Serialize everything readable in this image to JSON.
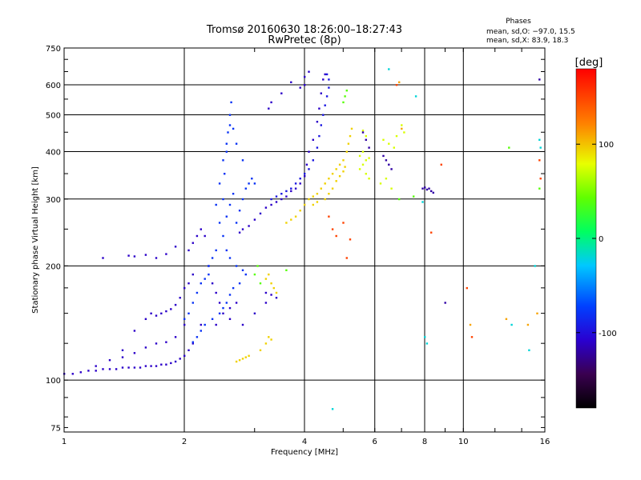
{
  "chart_data": {
    "type": "scatter",
    "title": "Tromsø 20160630 18:26:00–18:27:43",
    "subtitle": "RwPretec (8p)",
    "stats": {
      "heading": "Phases",
      "line_o": "mean, sd,O: −97.0, 15.5",
      "line_x": "mean, sd,X:  83.9, 18.3"
    },
    "xlabel": "Frequency [MHz]",
    "ylabel": "Stationary phase Virtual Height [km]",
    "xscale": "log",
    "yscale": "log",
    "xlim": [
      1,
      16
    ],
    "ylim": [
      73,
      750
    ],
    "xticks": [
      {
        "v": 1,
        "label": "1"
      },
      {
        "v": 2,
        "label": "2"
      },
      {
        "v": 4,
        "label": "4"
      },
      {
        "v": 6,
        "label": "6"
      },
      {
        "v": 8,
        "label": "8"
      },
      {
        "v": 10,
        "label": "10"
      },
      {
        "v": 16,
        "label": "16"
      }
    ],
    "yticks": [
      {
        "v": 75,
        "label": "75"
      },
      {
        "v": 100,
        "label": "100"
      },
      {
        "v": 200,
        "label": "200"
      },
      {
        "v": 300,
        "label": "300"
      },
      {
        "v": 400,
        "label": "400"
      },
      {
        "v": 500,
        "label": "500"
      },
      {
        "v": 600,
        "label": "600"
      },
      {
        "v": 750,
        "label": "750"
      }
    ],
    "grid_x": [
      2,
      4,
      6,
      8,
      10
    ],
    "grid_y": [
      100,
      200,
      300,
      400,
      500,
      600
    ],
    "colorbar": {
      "unit": "[deg]",
      "range": [
        -180,
        180
      ],
      "ticks": [
        {
          "v": 100,
          "label": "100"
        },
        {
          "v": 0,
          "label": "0"
        },
        {
          "v": -100,
          "label": "-100"
        }
      ]
    },
    "series": [
      {
        "phase_deg": -110,
        "points": [
          [
            1.0,
            104
          ],
          [
            1.05,
            104
          ],
          [
            1.1,
            105
          ],
          [
            1.15,
            106
          ],
          [
            1.2,
            106
          ],
          [
            1.25,
            107
          ],
          [
            1.3,
            107
          ],
          [
            1.35,
            107
          ],
          [
            1.4,
            108
          ],
          [
            1.45,
            108
          ],
          [
            1.5,
            108
          ],
          [
            1.55,
            108
          ],
          [
            1.6,
            109
          ],
          [
            1.65,
            109
          ],
          [
            1.7,
            109
          ],
          [
            1.75,
            110
          ],
          [
            1.8,
            110
          ],
          [
            1.85,
            111
          ],
          [
            1.9,
            112
          ],
          [
            1.95,
            114
          ],
          [
            2.0,
            116
          ],
          [
            2.05,
            120
          ],
          [
            2.1,
            125
          ],
          [
            1.2,
            109
          ],
          [
            1.3,
            113
          ],
          [
            1.4,
            120
          ],
          [
            1.5,
            135
          ],
          [
            1.6,
            145
          ],
          [
            1.65,
            150
          ],
          [
            1.7,
            148
          ],
          [
            1.75,
            150
          ],
          [
            1.8,
            152
          ],
          [
            1.85,
            154
          ],
          [
            1.9,
            158
          ],
          [
            1.95,
            165
          ],
          [
            2.0,
            175
          ],
          [
            2.05,
            180
          ],
          [
            2.1,
            190
          ],
          [
            1.4,
            115
          ],
          [
            1.5,
            118
          ],
          [
            1.6,
            122
          ],
          [
            1.7,
            125
          ],
          [
            1.8,
            126
          ],
          [
            1.9,
            130
          ],
          [
            2.0,
            140
          ],
          [
            2.2,
            140
          ],
          [
            2.4,
            140
          ],
          [
            2.6,
            145
          ],
          [
            2.8,
            140
          ],
          [
            3.0,
            150
          ],
          [
            3.2,
            160
          ],
          [
            2.05,
            220
          ],
          [
            2.1,
            230
          ],
          [
            2.15,
            240
          ],
          [
            2.2,
            250
          ],
          [
            2.25,
            240
          ],
          [
            2.3,
            200
          ],
          [
            2.35,
            180
          ],
          [
            2.4,
            170
          ],
          [
            2.45,
            160
          ],
          [
            2.5,
            150
          ],
          [
            2.6,
            155
          ],
          [
            2.7,
            160
          ],
          [
            1.25,
            210
          ],
          [
            1.45,
            213
          ],
          [
            1.5,
            212
          ],
          [
            1.6,
            214
          ],
          [
            1.7,
            210
          ],
          [
            1.8,
            215
          ],
          [
            1.9,
            225
          ],
          [
            2.75,
            245
          ],
          [
            2.8,
            250
          ],
          [
            2.9,
            255
          ],
          [
            3.0,
            265
          ],
          [
            3.1,
            275
          ],
          [
            3.2,
            285
          ],
          [
            3.3,
            290
          ],
          [
            3.4,
            295
          ],
          [
            3.5,
            300
          ],
          [
            3.6,
            305
          ],
          [
            3.7,
            315
          ],
          [
            3.8,
            320
          ],
          [
            3.9,
            330
          ],
          [
            4.0,
            345
          ],
          [
            4.05,
            370
          ],
          [
            4.1,
            400
          ],
          [
            4.2,
            430
          ],
          [
            4.3,
            480
          ],
          [
            4.35,
            520
          ],
          [
            4.4,
            570
          ],
          [
            4.45,
            620
          ],
          [
            4.5,
            640
          ],
          [
            3.2,
            170
          ],
          [
            3.3,
            168
          ],
          [
            3.4,
            165
          ],
          [
            4.0,
            630
          ],
          [
            4.1,
            650
          ],
          [
            3.7,
            610
          ],
          [
            3.5,
            570
          ],
          [
            3.3,
            540
          ],
          [
            3.25,
            520
          ],
          [
            3.9,
            590
          ],
          [
            4.0,
            600
          ]
        ]
      },
      {
        "phase_deg": -80,
        "points": [
          [
            2.5,
            300
          ],
          [
            2.52,
            350
          ],
          [
            2.55,
            400
          ],
          [
            2.57,
            450
          ],
          [
            2.6,
            500
          ],
          [
            2.62,
            540
          ],
          [
            2.6,
            470
          ],
          [
            2.55,
            420
          ],
          [
            2.5,
            380
          ],
          [
            2.45,
            330
          ],
          [
            2.4,
            290
          ],
          [
            2.45,
            260
          ],
          [
            2.5,
            240
          ],
          [
            2.55,
            220
          ],
          [
            2.6,
            210
          ],
          [
            2.7,
            200
          ],
          [
            2.8,
            195
          ],
          [
            2.85,
            190
          ],
          [
            2.75,
            180
          ],
          [
            2.65,
            175
          ],
          [
            2.6,
            168
          ],
          [
            2.55,
            160
          ],
          [
            2.5,
            155
          ],
          [
            2.45,
            150
          ],
          [
            2.35,
            145
          ],
          [
            2.25,
            140
          ],
          [
            2.2,
            135
          ],
          [
            2.15,
            130
          ],
          [
            2.1,
            126
          ],
          [
            2.7,
            260
          ],
          [
            2.75,
            280
          ],
          [
            2.8,
            300
          ],
          [
            2.85,
            320
          ],
          [
            2.9,
            330
          ],
          [
            2.95,
            340
          ],
          [
            3.0,
            330
          ],
          [
            2.8,
            380
          ],
          [
            2.7,
            420
          ],
          [
            2.65,
            460
          ],
          [
            2.3,
            200
          ],
          [
            2.35,
            210
          ],
          [
            2.4,
            220
          ],
          [
            2.3,
            190
          ],
          [
            2.25,
            185
          ],
          [
            2.2,
            180
          ],
          [
            2.15,
            170
          ],
          [
            2.1,
            160
          ],
          [
            2.05,
            150
          ],
          [
            2.0,
            145
          ],
          [
            2.55,
            270
          ],
          [
            2.6,
            290
          ],
          [
            2.65,
            310
          ]
        ]
      },
      {
        "phase_deg": -95,
        "points": [
          [
            3.3,
            300
          ],
          [
            3.4,
            305
          ],
          [
            3.5,
            310
          ],
          [
            3.6,
            315
          ],
          [
            3.7,
            320
          ],
          [
            3.8,
            330
          ],
          [
            3.9,
            340
          ],
          [
            4.0,
            350
          ],
          [
            4.1,
            360
          ],
          [
            4.2,
            380
          ],
          [
            4.3,
            410
          ],
          [
            4.35,
            440
          ],
          [
            4.4,
            470
          ],
          [
            4.45,
            500
          ],
          [
            4.5,
            530
          ],
          [
            4.55,
            560
          ],
          [
            4.6,
            590
          ],
          [
            4.6,
            620
          ],
          [
            4.55,
            640
          ]
        ]
      },
      {
        "phase_deg": 95,
        "points": [
          [
            3.6,
            260
          ],
          [
            3.7,
            265
          ],
          [
            3.8,
            270
          ],
          [
            3.9,
            280
          ],
          [
            4.0,
            290
          ],
          [
            4.1,
            300
          ],
          [
            4.2,
            305
          ],
          [
            4.3,
            310
          ],
          [
            4.4,
            320
          ],
          [
            4.5,
            330
          ],
          [
            4.6,
            340
          ],
          [
            4.7,
            350
          ],
          [
            4.8,
            360
          ],
          [
            4.9,
            370
          ],
          [
            5.0,
            380
          ],
          [
            5.1,
            400
          ],
          [
            5.15,
            420
          ],
          [
            5.2,
            440
          ],
          [
            5.25,
            460
          ],
          [
            4.5,
            300
          ],
          [
            4.6,
            310
          ],
          [
            4.7,
            320
          ],
          [
            4.8,
            335
          ],
          [
            4.9,
            345
          ],
          [
            5.0,
            355
          ],
          [
            5.05,
            365
          ],
          [
            4.2,
            290
          ],
          [
            4.3,
            295
          ],
          [
            2.7,
            112
          ],
          [
            2.75,
            113
          ],
          [
            2.8,
            114
          ],
          [
            2.85,
            115
          ],
          [
            2.9,
            116
          ],
          [
            3.1,
            120
          ],
          [
            3.2,
            125
          ],
          [
            3.3,
            128
          ],
          [
            3.25,
            130
          ],
          [
            3.2,
            185
          ],
          [
            3.25,
            190
          ],
          [
            3.3,
            180
          ],
          [
            3.35,
            175
          ],
          [
            3.4,
            170
          ]
        ]
      },
      {
        "phase_deg": 75,
        "points": [
          [
            5.5,
            360
          ],
          [
            5.6,
            370
          ],
          [
            5.7,
            380
          ],
          [
            5.8,
            385
          ],
          [
            5.5,
            390
          ],
          [
            5.6,
            400
          ],
          [
            5.7,
            350
          ],
          [
            5.8,
            340
          ],
          [
            6.3,
            430
          ],
          [
            6.5,
            420
          ],
          [
            6.7,
            410
          ],
          [
            6.8,
            440
          ],
          [
            7.0,
            470
          ],
          [
            7.1,
            450
          ],
          [
            6.2,
            330
          ],
          [
            6.4,
            340
          ],
          [
            6.6,
            320
          ],
          [
            5.6,
            455
          ],
          [
            5.7,
            440
          ]
        ]
      },
      {
        "phase_deg": -120,
        "points": [
          [
            7.9,
            320
          ],
          [
            8.0,
            322
          ],
          [
            8.1,
            318
          ],
          [
            8.2,
            320
          ],
          [
            8.3,
            315
          ],
          [
            8.4,
            312
          ],
          [
            5.6,
            450
          ],
          [
            5.7,
            430
          ],
          [
            5.8,
            410
          ],
          [
            6.3,
            390
          ],
          [
            6.4,
            380
          ],
          [
            6.5,
            370
          ],
          [
            6.6,
            360
          ],
          [
            9.0,
            160
          ],
          [
            15.5,
            620
          ]
        ]
      },
      {
        "phase_deg": 40,
        "points": [
          [
            3.0,
            190
          ],
          [
            3.05,
            200
          ],
          [
            3.1,
            180
          ],
          [
            3.6,
            195
          ],
          [
            5.0,
            540
          ],
          [
            5.05,
            560
          ],
          [
            5.1,
            580
          ],
          [
            6.9,
            300
          ],
          [
            7.5,
            305
          ],
          [
            13.0,
            410
          ],
          [
            15.5,
            320
          ]
        ]
      },
      {
        "phase_deg": 150,
        "points": [
          [
            4.6,
            270
          ],
          [
            4.7,
            250
          ],
          [
            4.8,
            240
          ],
          [
            5.0,
            260
          ],
          [
            5.2,
            235
          ],
          [
            5.1,
            210
          ],
          [
            8.3,
            245
          ],
          [
            8.8,
            370
          ],
          [
            10.2,
            175
          ],
          [
            10.5,
            130
          ],
          [
            6.8,
            600
          ],
          [
            15.5,
            380
          ],
          [
            15.6,
            340
          ]
        ]
      },
      {
        "phase_deg": -20,
        "points": [
          [
            4.7,
            84
          ],
          [
            6.5,
            660
          ],
          [
            7.6,
            560
          ],
          [
            7.9,
            295
          ],
          [
            8.0,
            130
          ],
          [
            8.1,
            125
          ],
          [
            13.2,
            140
          ],
          [
            14.6,
            120
          ],
          [
            15.1,
            200
          ],
          [
            15.5,
            430
          ],
          [
            15.6,
            410
          ]
        ]
      },
      {
        "phase_deg": 110,
        "points": [
          [
            10.4,
            140
          ],
          [
            12.8,
            145
          ],
          [
            14.5,
            140
          ],
          [
            15.3,
            150
          ],
          [
            6.9,
            610
          ],
          [
            7.0,
            460
          ]
        ]
      }
    ]
  }
}
